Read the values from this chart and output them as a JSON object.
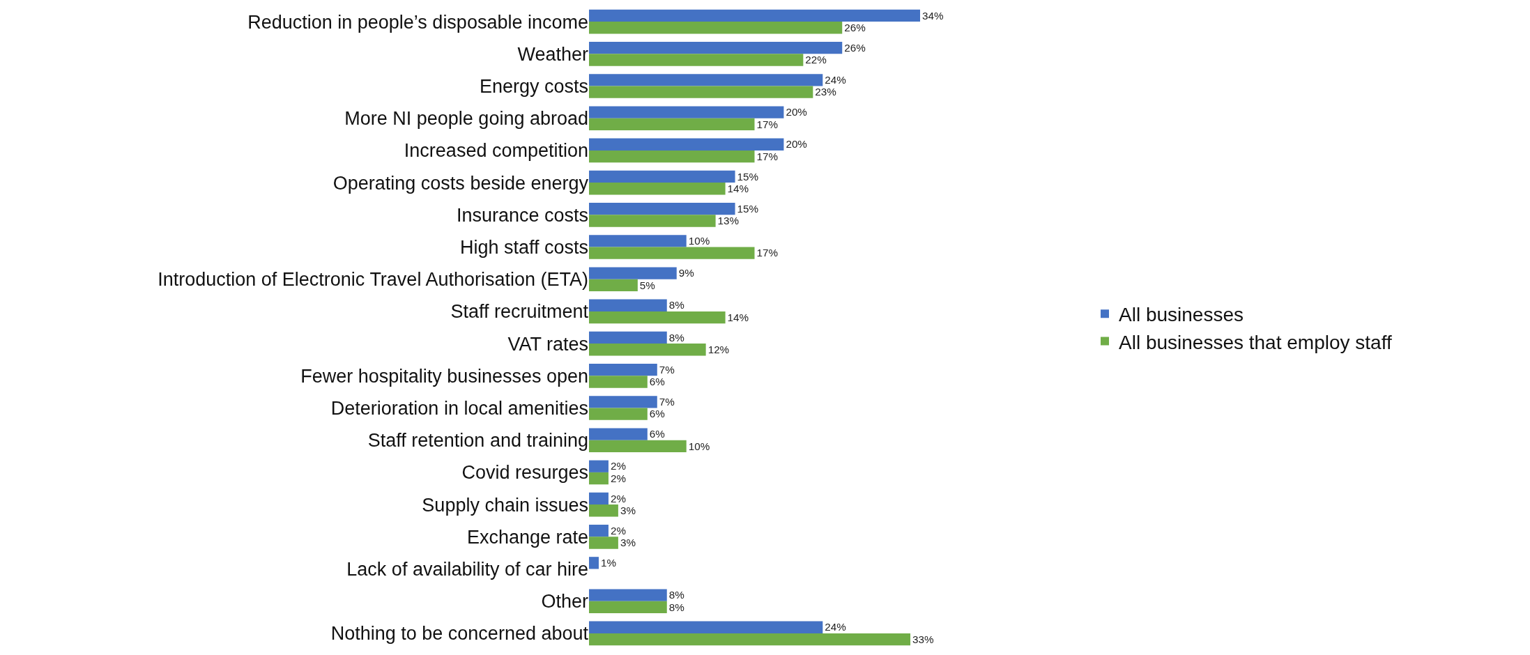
{
  "chart_data": {
    "type": "bar",
    "orientation": "horizontal",
    "legend": "right",
    "categories": [
      "Reduction in people’s disposable income",
      "Weather",
      "Energy costs",
      "More NI people going abroad",
      "Increased competition",
      "Operating costs beside energy",
      "Insurance costs",
      "High staff costs",
      "Introduction of Electronic Travel Authorisation (ETA)",
      "Staff recruitment",
      "VAT rates",
      "Fewer hospitality businesses open",
      "Deterioration in local amenities",
      "Staff retention and training",
      "Covid resurges",
      "Supply chain issues",
      "Exchange rate",
      "Lack of availability of car hire",
      "Other",
      "Nothing to be concerned about"
    ],
    "series": [
      {
        "name": "All businesses",
        "color": "#4472c4",
        "values": [
          34,
          26,
          24,
          20,
          20,
          15,
          15,
          10,
          9,
          8,
          8,
          7,
          7,
          6,
          2,
          2,
          2,
          1,
          8,
          24
        ],
        "value_labels": [
          "34%",
          "26%",
          "24%",
          "20%",
          "20%",
          "15%",
          "15%",
          "10%",
          "9%",
          "8%",
          "8%",
          "7%",
          "7%",
          "6%",
          "2%",
          "2%",
          "2%",
          "1%",
          "8%",
          "24%"
        ]
      },
      {
        "name": "All businesses that employ staff",
        "color": "#70ad47",
        "values": [
          26,
          22,
          23,
          17,
          17,
          14,
          13,
          17,
          5,
          14,
          12,
          6,
          6,
          10,
          2,
          3,
          3,
          null,
          8,
          33
        ],
        "value_labels": [
          "26%",
          "22%",
          "23%",
          "17%",
          "17%",
          "14%",
          "13%",
          "17%",
          "5%",
          "14%",
          "12%",
          "6%",
          "6%",
          "10%",
          "2%",
          "3%",
          "3%",
          null,
          "8%",
          "33%"
        ]
      }
    ]
  }
}
